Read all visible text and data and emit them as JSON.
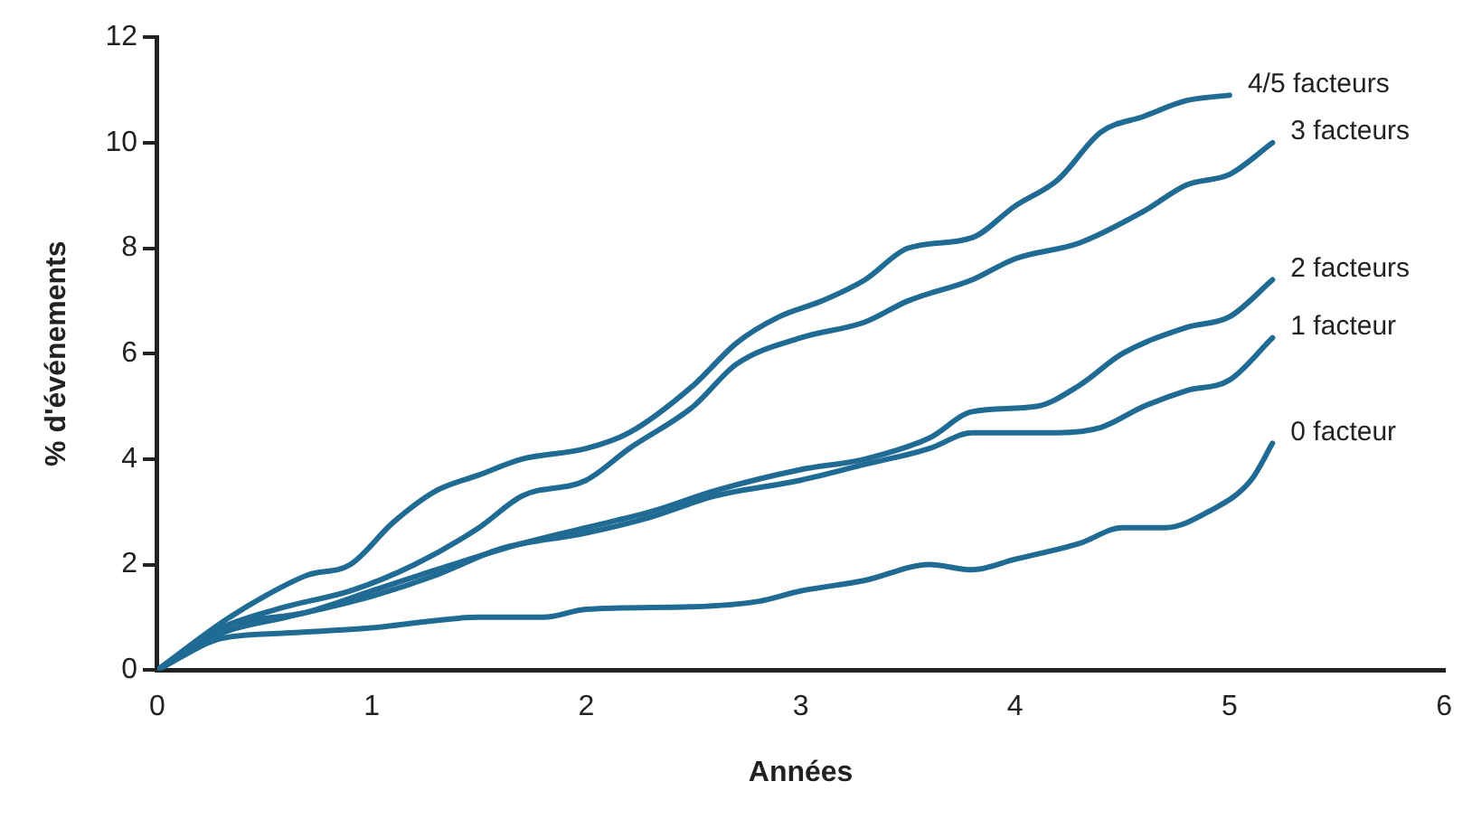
{
  "chart_data": {
    "type": "line",
    "xlabel": "Années",
    "ylabel": "% d'événements",
    "xlim": [
      0,
      6
    ],
    "xticks": [
      0,
      1,
      2,
      3,
      4,
      5,
      6
    ],
    "ylim": [
      0,
      12
    ],
    "yticks": [
      0,
      2,
      4,
      6,
      8,
      10,
      12
    ],
    "grid": false,
    "legend": false,
    "marker": "none",
    "line_style": "solid",
    "series": [
      {
        "name": "4/5 facteurs",
        "color": "#1f6b94",
        "x": [
          0,
          0.3,
          0.5,
          0.7,
          0.9,
          1.1,
          1.3,
          1.5,
          1.7,
          2,
          2.2,
          2.5,
          2.7,
          2.9,
          3.1,
          3.3,
          3.5,
          3.8,
          4,
          4.2,
          4.4,
          4.6,
          4.8,
          5
        ],
        "values": [
          0,
          0.9,
          1.4,
          1.8,
          2.0,
          2.8,
          3.4,
          3.7,
          4.0,
          4.2,
          4.5,
          5.4,
          6.2,
          6.7,
          7.0,
          7.4,
          8.0,
          8.2,
          8.8,
          9.3,
          10.2,
          10.5,
          10.8,
          10.9
        ]
      },
      {
        "name": "3 facteurs",
        "color": "#1f6b94",
        "x": [
          0,
          0.3,
          0.6,
          0.9,
          1.2,
          1.5,
          1.7,
          2,
          2.2,
          2.5,
          2.7,
          3,
          3.3,
          3.5,
          3.8,
          4,
          4.3,
          4.6,
          4.8,
          5,
          5.2
        ],
        "values": [
          0,
          0.8,
          1.2,
          1.5,
          2.0,
          2.7,
          3.3,
          3.6,
          4.2,
          5.0,
          5.8,
          6.3,
          6.6,
          7.0,
          7.4,
          7.8,
          8.1,
          8.7,
          9.2,
          9.4,
          10.0
        ]
      },
      {
        "name": "2 facteurs",
        "color": "#1f6b94",
        "x": [
          0,
          0.3,
          0.7,
          1,
          1.3,
          1.7,
          2,
          2.3,
          2.6,
          3,
          3.3,
          3.6,
          3.8,
          4.1,
          4.3,
          4.5,
          4.8,
          5,
          5.2
        ],
        "values": [
          0,
          0.8,
          1.1,
          1.5,
          1.9,
          2.4,
          2.7,
          3.0,
          3.4,
          3.8,
          4.0,
          4.4,
          4.9,
          5.0,
          5.4,
          6.0,
          6.5,
          6.7,
          7.4
        ]
      },
      {
        "name": "1 facteur",
        "color": "#1f6b94",
        "x": [
          0,
          0.3,
          0.6,
          1,
          1.3,
          1.6,
          2,
          2.3,
          2.6,
          3,
          3.3,
          3.6,
          3.8,
          4.2,
          4.4,
          4.6,
          4.8,
          5,
          5.2
        ],
        "values": [
          0,
          0.7,
          1.0,
          1.4,
          1.8,
          2.3,
          2.6,
          2.9,
          3.3,
          3.6,
          3.9,
          4.2,
          4.5,
          4.5,
          4.6,
          5.0,
          5.3,
          5.5,
          6.3
        ]
      },
      {
        "name": "0 facteur",
        "color": "#1f6b94",
        "x": [
          0,
          0.3,
          0.6,
          1,
          1.5,
          1.8,
          2,
          2.5,
          2.8,
          3,
          3.3,
          3.6,
          3.8,
          4,
          4.3,
          4.5,
          4.7,
          4.9,
          5.1,
          5.2
        ],
        "values": [
          0,
          0.6,
          0.7,
          0.8,
          1.0,
          1.0,
          1.15,
          1.2,
          1.3,
          1.5,
          1.7,
          2.0,
          1.9,
          2.1,
          2.4,
          2.7,
          2.7,
          3.0,
          3.6,
          4.3
        ]
      }
    ]
  }
}
